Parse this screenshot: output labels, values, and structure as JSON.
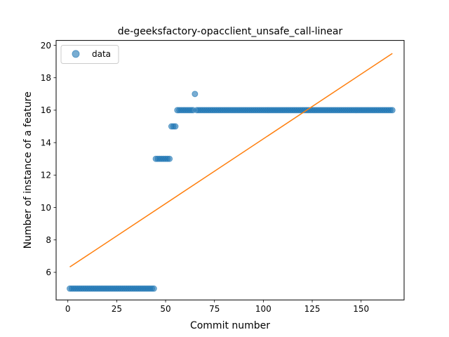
{
  "chart_data": {
    "type": "scatter",
    "title": "de-geeksfactory-opacclient_unsafe_call-linear",
    "xlabel": "Commit number",
    "ylabel": "Number of instance of a feature",
    "xlim": [
      -6,
      172
    ],
    "ylim": [
      4.3,
      20.3
    ],
    "xticks": [
      0,
      25,
      50,
      75,
      100,
      125,
      150
    ],
    "yticks": [
      6,
      8,
      10,
      12,
      14,
      16,
      18,
      20
    ],
    "grid": false,
    "legend": {
      "placement": "top-left",
      "entries": [
        "data"
      ]
    },
    "colors": {
      "data": "#1f77b4",
      "fit": "#ff7f0e"
    },
    "series": [
      {
        "name": "data",
        "kind": "scatter",
        "segments": [
          {
            "x_start": 1,
            "x_end": 44,
            "y": 5
          },
          {
            "x_start": 45,
            "x_end": 52,
            "y": 13
          },
          {
            "x_start": 53,
            "x_end": 55,
            "y": 15
          },
          {
            "x_start": 56,
            "x_end": 64,
            "y": 16
          },
          {
            "x_start": 65,
            "x_end": 65,
            "y": 17
          },
          {
            "x_start": 66,
            "x_end": 166,
            "y": 16
          }
        ]
      },
      {
        "kind": "line",
        "x": [
          1,
          166
        ],
        "y": [
          6.33,
          19.5
        ]
      }
    ]
  }
}
